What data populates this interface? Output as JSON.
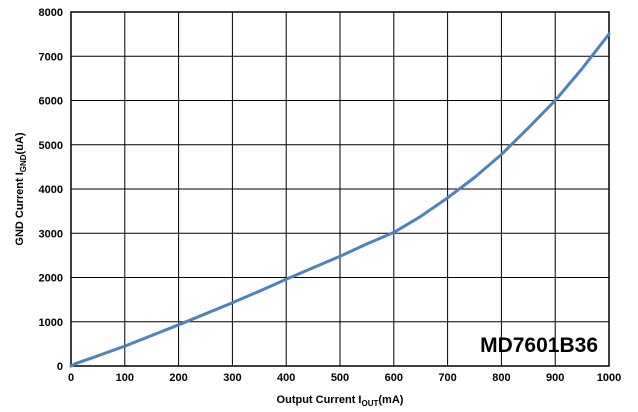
{
  "chart_data": {
    "type": "line",
    "title": "",
    "xlabel": {
      "main": "Output Current I",
      "sub": "OUT",
      "unit": "(mA)"
    },
    "ylabel": {
      "main": "GND Current I",
      "sub": "GND",
      "unit": "(uA)"
    },
    "xlim": [
      0,
      1000
    ],
    "ylim": [
      0,
      8000
    ],
    "x_ticks": [
      0,
      100,
      200,
      300,
      400,
      500,
      600,
      700,
      800,
      900,
      1000
    ],
    "y_ticks": [
      0,
      1000,
      2000,
      3000,
      4000,
      5000,
      6000,
      7000,
      8000
    ],
    "grid": true,
    "annotation": "MD7601B36",
    "series": [
      {
        "color": "#4f81bd",
        "x": [
          0,
          10,
          50,
          100,
          150,
          200,
          250,
          300,
          350,
          400,
          450,
          500,
          550,
          600,
          650,
          700,
          750,
          800,
          850,
          900,
          950,
          1000
        ],
        "y": [
          0,
          60,
          230,
          450,
          690,
          930,
          1180,
          1430,
          1690,
          1960,
          2220,
          2480,
          2760,
          3020,
          3380,
          3800,
          4260,
          4780,
          5380,
          6000,
          6720,
          7500
        ]
      }
    ]
  }
}
